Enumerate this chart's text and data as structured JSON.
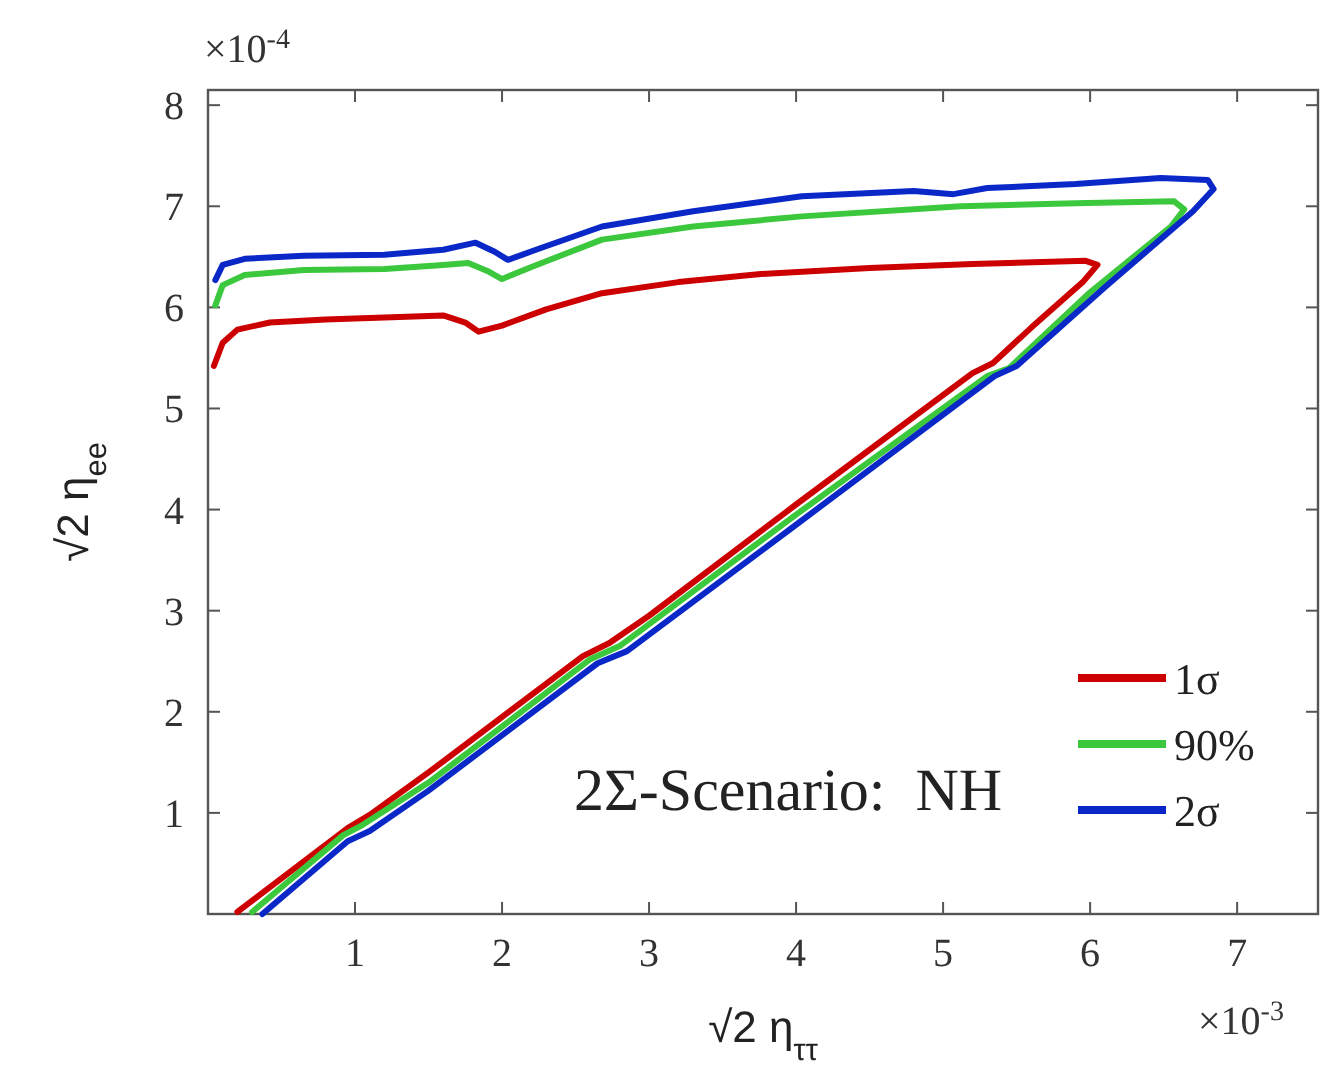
{
  "chart_data": {
    "type": "line",
    "xlabel": "√2 η$_{ττ}$",
    "ylabel": "√2 η$_{ee}$",
    "xlim": [
      0,
      7.55
    ],
    "ylim": [
      0,
      8.15
    ],
    "xticks": [
      1,
      2,
      3,
      4,
      5,
      6,
      7
    ],
    "yticks": [
      1,
      2,
      3,
      4,
      5,
      6,
      7,
      8
    ],
    "grid": false,
    "legend": "bottom right",
    "line_style": "solid",
    "marker": "none",
    "annotations": [
      "×10$^{-3}$",
      "×10$^{-4}$",
      "2Σ-Scenario:  NH"
    ],
    "series": [
      {
        "name": "1σ",
        "color": "#cc0000",
        "x": [
          0.04,
          0.1,
          0.2,
          0.42,
          0.8,
          1.2,
          1.6,
          1.75,
          1.84,
          2.0,
          2.3,
          2.68,
          3.2,
          3.76,
          4.5,
          5.2,
          5.97,
          6.05,
          5.95,
          5.6,
          5.34,
          5.2,
          4.0,
          3.0,
          2.73,
          2.55,
          1.5,
          1.1,
          0.95,
          0.2
        ],
        "values": [
          5.42,
          5.65,
          5.78,
          5.85,
          5.88,
          5.9,
          5.92,
          5.85,
          5.76,
          5.82,
          5.98,
          6.14,
          6.25,
          6.33,
          6.39,
          6.43,
          6.46,
          6.42,
          6.25,
          5.8,
          5.45,
          5.35,
          4.05,
          2.95,
          2.68,
          2.55,
          1.4,
          0.98,
          0.85,
          0.02
        ]
      },
      {
        "name": "90%",
        "color": "#3cc83c",
        "x": [
          0.05,
          0.1,
          0.25,
          0.65,
          1.2,
          1.6,
          1.77,
          1.9,
          2.0,
          2.2,
          2.68,
          3.3,
          4.04,
          5.12,
          5.9,
          6.57,
          6.64,
          6.55,
          6.0,
          5.45,
          5.3,
          4.0,
          2.8,
          2.6,
          1.5,
          1.05,
          0.92,
          0.3
        ],
        "values": [
          6.02,
          6.22,
          6.32,
          6.37,
          6.38,
          6.42,
          6.44,
          6.36,
          6.28,
          6.4,
          6.67,
          6.8,
          6.9,
          7.0,
          7.03,
          7.05,
          6.97,
          6.8,
          6.15,
          5.4,
          5.32,
          3.95,
          2.65,
          2.52,
          1.3,
          0.88,
          0.78,
          0.02
        ]
      },
      {
        "name": "2σ",
        "color": "#0a28c8",
        "x": [
          0.05,
          0.1,
          0.25,
          0.65,
          1.2,
          1.6,
          1.82,
          1.95,
          2.04,
          2.25,
          2.68,
          3.3,
          4.04,
          4.8,
          5.07,
          5.3,
          5.9,
          6.48,
          6.8,
          6.84,
          6.7,
          6.1,
          5.5,
          5.35,
          4.0,
          2.85,
          2.65,
          1.5,
          1.1,
          0.95,
          0.37
        ],
        "values": [
          6.27,
          6.42,
          6.48,
          6.51,
          6.52,
          6.57,
          6.64,
          6.55,
          6.47,
          6.58,
          6.8,
          6.95,
          7.1,
          7.15,
          7.12,
          7.18,
          7.22,
          7.28,
          7.26,
          7.17,
          6.95,
          6.2,
          5.42,
          5.32,
          3.85,
          2.6,
          2.48,
          1.22,
          0.82,
          0.72,
          0.0
        ]
      }
    ]
  }
}
